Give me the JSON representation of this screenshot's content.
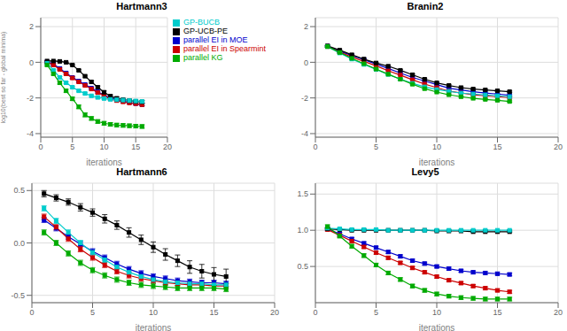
{
  "chart_data": [
    {
      "type": "line",
      "title": "Hartmann3",
      "xlabel": "iterations",
      "ylabel": "log10(best so far - global minima)",
      "x": [
        1,
        2,
        3,
        4,
        5,
        6,
        7,
        8,
        9,
        10,
        11,
        12,
        13,
        14,
        15,
        16
      ],
      "xlim": [
        0,
        20
      ],
      "xticks": [
        0,
        5,
        10,
        15,
        20
      ],
      "ylim": [
        -4.2,
        2.5
      ],
      "yticks": [
        -4,
        -2,
        0,
        2
      ],
      "grid": true,
      "legend": "upper right",
      "marker": "square",
      "series": [
        {
          "name": "parallel EI in MOE",
          "color": "#0000cc",
          "values": [
            0.03,
            -0.1,
            -0.35,
            -0.6,
            -0.85,
            -1.05,
            -1.25,
            -1.45,
            -1.65,
            -1.85,
            -2.0,
            -2.1,
            -2.18,
            -2.25,
            -2.32,
            -2.38
          ],
          "error": [
            0.05,
            0.06,
            0.06,
            0.06,
            0.06,
            0.06,
            0.06,
            0.06,
            0.06,
            0.06,
            0.06,
            0.06,
            0.06,
            0.06,
            0.06,
            0.06
          ]
        },
        {
          "name": "parallel EI in Spearmint",
          "color": "#cc0000",
          "values": [
            0.0,
            -0.15,
            -0.4,
            -0.65,
            -0.88,
            -1.1,
            -1.3,
            -1.5,
            -1.7,
            -1.88,
            -2.05,
            -2.15,
            -2.22,
            -2.28,
            -2.32,
            -2.38
          ],
          "error": [
            0.05,
            0.06,
            0.06,
            0.06,
            0.06,
            0.06,
            0.06,
            0.06,
            0.06,
            0.06,
            0.06,
            0.06,
            0.06,
            0.06,
            0.06,
            0.06
          ]
        },
        {
          "name": "GP-UCB-PE",
          "color": "#000000",
          "values": [
            0.07,
            0.07,
            0.05,
            0.0,
            -0.15,
            -0.45,
            -0.78,
            -1.1,
            -1.4,
            -1.68,
            -1.9,
            -2.02,
            -2.1,
            -2.15,
            -2.2,
            -2.22
          ],
          "error": [
            0.02,
            0.02,
            0.02,
            0.02,
            0.03,
            0.04,
            0.05,
            0.06,
            0.07,
            0.07,
            0.07,
            0.07,
            0.07,
            0.07,
            0.07,
            0.07
          ]
        },
        {
          "name": "GP-BUCB",
          "color": "#00cccc",
          "values": [
            -0.05,
            -0.45,
            -0.85,
            -1.15,
            -1.4,
            -1.6,
            -1.75,
            -1.88,
            -1.97,
            -2.03,
            -2.08,
            -2.1,
            -2.12,
            -2.15,
            -2.17,
            -2.2
          ],
          "error": [
            0.05,
            0.05,
            0.05,
            0.05,
            0.05,
            0.05,
            0.05,
            0.05,
            0.05,
            0.05,
            0.05,
            0.05,
            0.05,
            0.05,
            0.05,
            0.05
          ]
        },
        {
          "name": "parallel KG",
          "color": "#00aa00",
          "values": [
            -0.15,
            -0.65,
            -1.15,
            -1.6,
            -2.05,
            -2.5,
            -2.95,
            -3.15,
            -3.32,
            -3.42,
            -3.48,
            -3.52,
            -3.54,
            -3.56,
            -3.58,
            -3.6
          ],
          "error": [
            0.06,
            0.06,
            0.07,
            0.08,
            0.09,
            0.1,
            0.11,
            0.1,
            0.1,
            0.1,
            0.1,
            0.1,
            0.1,
            0.1,
            0.1,
            0.1
          ]
        }
      ]
    },
    {
      "type": "line",
      "title": "Branin2",
      "xlabel": "iterations",
      "x": [
        1,
        2,
        3,
        4,
        5,
        6,
        7,
        8,
        9,
        10,
        11,
        12,
        13,
        14,
        15,
        16
      ],
      "xlim": [
        0,
        20
      ],
      "xticks": [
        0,
        5,
        10,
        15,
        20
      ],
      "ylim": [
        -4.2,
        2.5
      ],
      "yticks": [
        -4,
        -2,
        0,
        2
      ],
      "grid": true,
      "marker": "square",
      "series": [
        {
          "color": "#0000cc",
          "values": [
            0.9,
            0.62,
            0.38,
            0.15,
            -0.1,
            -0.35,
            -0.6,
            -0.85,
            -1.05,
            -1.25,
            -1.45,
            -1.55,
            -1.65,
            -1.72,
            -1.78,
            -1.85
          ],
          "error": [
            0.04,
            0.04,
            0.04,
            0.04,
            0.04,
            0.04,
            0.04,
            0.04,
            0.04,
            0.04,
            0.04,
            0.04,
            0.04,
            0.04,
            0.04,
            0.04
          ]
        },
        {
          "color": "#cc0000",
          "values": [
            0.88,
            0.58,
            0.3,
            0.05,
            -0.2,
            -0.48,
            -0.72,
            -0.98,
            -1.22,
            -1.42,
            -1.62,
            -1.72,
            -1.82,
            -1.88,
            -1.93,
            -1.98
          ],
          "error": [
            0.04,
            0.04,
            0.04,
            0.04,
            0.04,
            0.04,
            0.04,
            0.04,
            0.04,
            0.04,
            0.04,
            0.04,
            0.04,
            0.04,
            0.04,
            0.04
          ]
        },
        {
          "color": "#000000",
          "values": [
            0.92,
            0.68,
            0.42,
            0.18,
            -0.04,
            -0.22,
            -0.45,
            -0.7,
            -0.95,
            -1.15,
            -1.3,
            -1.42,
            -1.5,
            -1.55,
            -1.6,
            -1.65
          ],
          "error": [
            0.04,
            0.04,
            0.04,
            0.04,
            0.04,
            0.04,
            0.04,
            0.04,
            0.04,
            0.04,
            0.04,
            0.04,
            0.04,
            0.04,
            0.04,
            0.04
          ]
        },
        {
          "color": "#00cccc",
          "values": [
            0.88,
            0.52,
            0.18,
            -0.12,
            -0.4,
            -0.68,
            -0.95,
            -1.18,
            -1.38,
            -1.53,
            -1.63,
            -1.73,
            -1.78,
            -1.83,
            -1.88,
            -1.93
          ],
          "error": [
            0.04,
            0.04,
            0.04,
            0.04,
            0.04,
            0.04,
            0.04,
            0.04,
            0.04,
            0.04,
            0.04,
            0.04,
            0.04,
            0.04,
            0.04,
            0.04
          ]
        },
        {
          "color": "#00aa00",
          "values": [
            0.88,
            0.55,
            0.22,
            -0.08,
            -0.38,
            -0.67,
            -0.95,
            -1.23,
            -1.48,
            -1.67,
            -1.82,
            -1.93,
            -2.02,
            -2.08,
            -2.13,
            -2.2
          ],
          "error": [
            0.04,
            0.04,
            0.04,
            0.04,
            0.04,
            0.04,
            0.04,
            0.04,
            0.04,
            0.04,
            0.04,
            0.04,
            0.04,
            0.04,
            0.04,
            0.04
          ]
        }
      ]
    },
    {
      "type": "line",
      "title": "Hartmann6",
      "xlabel": "iterations",
      "x": [
        1,
        2,
        3,
        4,
        5,
        6,
        7,
        8,
        9,
        10,
        11,
        12,
        13,
        14,
        15,
        16
      ],
      "xlim": [
        0,
        20
      ],
      "xticks": [
        0,
        5,
        10,
        15,
        20
      ],
      "ylim": [
        -0.57,
        0.57
      ],
      "yticks": [
        -0.5,
        {
          "value": 0.0,
          "label": "0.0"
        },
        0.5
      ],
      "grid": true,
      "marker": "square",
      "series": [
        {
          "color": "#0000cc",
          "values": [
            0.22,
            0.14,
            0.06,
            -0.01,
            -0.08,
            -0.14,
            -0.2,
            -0.25,
            -0.29,
            -0.32,
            -0.34,
            -0.36,
            -0.37,
            -0.38,
            -0.38,
            -0.39
          ],
          "error": [
            0.025,
            0.025,
            0.025,
            0.025,
            0.025,
            0.025,
            0.025,
            0.025,
            0.025,
            0.025,
            0.025,
            0.025,
            0.025,
            0.025,
            0.025,
            0.025
          ]
        },
        {
          "color": "#cc0000",
          "values": [
            0.25,
            0.15,
            0.04,
            -0.06,
            -0.14,
            -0.21,
            -0.27,
            -0.31,
            -0.34,
            -0.36,
            -0.38,
            -0.39,
            -0.4,
            -0.4,
            -0.41,
            -0.41
          ],
          "error": [
            0.025,
            0.025,
            0.025,
            0.025,
            0.025,
            0.025,
            0.025,
            0.025,
            0.025,
            0.025,
            0.025,
            0.025,
            0.025,
            0.025,
            0.025,
            0.025
          ]
        },
        {
          "color": "#000000",
          "values": [
            0.47,
            0.43,
            0.39,
            0.34,
            0.29,
            0.23,
            0.17,
            0.1,
            0.03,
            -0.04,
            -0.11,
            -0.17,
            -0.23,
            -0.27,
            -0.3,
            -0.32
          ],
          "error": [
            0.03,
            0.03,
            0.03,
            0.035,
            0.035,
            0.04,
            0.04,
            0.045,
            0.045,
            0.05,
            0.055,
            0.055,
            0.06,
            0.065,
            0.065,
            0.07
          ]
        },
        {
          "color": "#00cccc",
          "values": [
            0.33,
            0.21,
            0.1,
            0.0,
            -0.09,
            -0.16,
            -0.23,
            -0.28,
            -0.32,
            -0.35,
            -0.37,
            -0.38,
            -0.39,
            -0.39,
            -0.4,
            -0.4
          ],
          "error": [
            0.025,
            0.025,
            0.025,
            0.025,
            0.025,
            0.025,
            0.025,
            0.025,
            0.025,
            0.025,
            0.025,
            0.025,
            0.025,
            0.025,
            0.025,
            0.025
          ]
        },
        {
          "color": "#00aa00",
          "values": [
            0.1,
            0.0,
            -0.1,
            -0.19,
            -0.26,
            -0.31,
            -0.35,
            -0.38,
            -0.4,
            -0.41,
            -0.42,
            -0.43,
            -0.43,
            -0.43,
            -0.43,
            -0.44
          ],
          "error": [
            0.025,
            0.025,
            0.025,
            0.025,
            0.025,
            0.025,
            0.025,
            0.025,
            0.025,
            0.025,
            0.025,
            0.025,
            0.025,
            0.025,
            0.025,
            0.025
          ]
        }
      ]
    },
    {
      "type": "line",
      "title": "Levy5",
      "xlabel": "iterations",
      "x": [
        1,
        2,
        3,
        4,
        5,
        6,
        7,
        8,
        9,
        10,
        11,
        12,
        13,
        14,
        15,
        16
      ],
      "xlim": [
        0,
        20
      ],
      "xticks": [
        0,
        5,
        10,
        15,
        20
      ],
      "ylim": [
        0.0,
        1.65
      ],
      "yticks": [
        0.5,
        {
          "value": 1.0,
          "label": "1.0"
        },
        1.5
      ],
      "grid": true,
      "marker": "square",
      "series": [
        {
          "color": "#0000cc",
          "values": [
            1.02,
            0.95,
            0.88,
            0.82,
            0.76,
            0.7,
            0.64,
            0.58,
            0.54,
            0.5,
            0.47,
            0.44,
            0.42,
            0.41,
            0.4,
            0.39
          ],
          "error": [
            0.02,
            0.02,
            0.02,
            0.02,
            0.02,
            0.02,
            0.02,
            0.02,
            0.02,
            0.02,
            0.02,
            0.02,
            0.02,
            0.02,
            0.02,
            0.02
          ]
        },
        {
          "color": "#cc0000",
          "values": [
            1.01,
            0.93,
            0.85,
            0.77,
            0.69,
            0.62,
            0.55,
            0.48,
            0.42,
            0.36,
            0.31,
            0.27,
            0.23,
            0.2,
            0.17,
            0.15
          ],
          "error": [
            0.02,
            0.02,
            0.02,
            0.02,
            0.02,
            0.02,
            0.02,
            0.02,
            0.02,
            0.02,
            0.02,
            0.02,
            0.02,
            0.02,
            0.02,
            0.02
          ]
        },
        {
          "color": "#000000",
          "values": [
            1.02,
            1.01,
            1.0,
            1.0,
            1.0,
            1.0,
            1.0,
            1.0,
            1.0,
            0.99,
            0.99,
            0.99,
            0.98,
            0.98,
            0.98,
            0.98
          ],
          "error": [
            0.008,
            0.008,
            0.008,
            0.008,
            0.008,
            0.008,
            0.008,
            0.008,
            0.008,
            0.008,
            0.008,
            0.008,
            0.008,
            0.008,
            0.008,
            0.008
          ]
        },
        {
          "color": "#00cccc",
          "values": [
            1.03,
            1.02,
            1.01,
            1.01,
            1.01,
            1.0,
            1.0,
            1.0,
            1.0,
            1.0,
            1.0,
            1.0,
            1.0,
            1.0,
            1.0,
            1.0
          ],
          "error": [
            0.008,
            0.008,
            0.008,
            0.008,
            0.008,
            0.008,
            0.008,
            0.008,
            0.008,
            0.008,
            0.008,
            0.008,
            0.008,
            0.008,
            0.008,
            0.008
          ]
        },
        {
          "color": "#00aa00",
          "values": [
            1.05,
            0.92,
            0.78,
            0.65,
            0.52,
            0.41,
            0.32,
            0.23,
            0.17,
            0.12,
            0.09,
            0.07,
            0.06,
            0.05,
            0.05,
            0.05
          ],
          "error": [
            0.025,
            0.025,
            0.025,
            0.025,
            0.025,
            0.025,
            0.025,
            0.025,
            0.025,
            0.025,
            0.025,
            0.025,
            0.025,
            0.025,
            0.025,
            0.025
          ]
        }
      ]
    }
  ]
}
